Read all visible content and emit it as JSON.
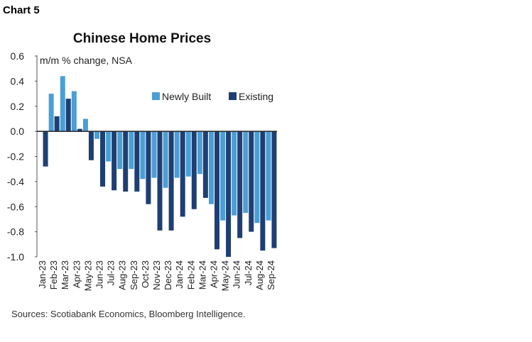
{
  "label": "Chart 5",
  "source": "Sources: Scotiabank Economics, Bloomberg Intelligence.",
  "chart_data": {
    "type": "bar",
    "title": "Chinese Home Prices",
    "ylabel": "m/m % change, NSA",
    "xlabel": "",
    "ylim": [
      -1.0,
      0.6
    ],
    "yticks": [
      "0.6",
      "0.4",
      "0.2",
      "0.0",
      "-0.2",
      "-0.4",
      "-0.6",
      "-0.8",
      "-1.0"
    ],
    "legend_position": "top-right",
    "grid": false,
    "categories": [
      "Jan-23",
      "Feb-23",
      "Mar-23",
      "Apr-23",
      "May-23",
      "Jun-23",
      "Jul-23",
      "Aug-23",
      "Sep-23",
      "Oct-23",
      "Nov-23",
      "Dec-23",
      "Jan-24",
      "Feb-24",
      "Mar-24",
      "Apr-24",
      "May-24",
      "Jun-24",
      "Jul-24",
      "Aug-24",
      "Sep-24"
    ],
    "series": [
      {
        "name": "Newly Built",
        "color": "#4a9fd6",
        "values": [
          0.0,
          0.3,
          0.44,
          0.32,
          0.1,
          -0.06,
          -0.24,
          -0.3,
          -0.3,
          -0.38,
          -0.37,
          -0.45,
          -0.37,
          -0.36,
          -0.34,
          -0.58,
          -0.71,
          -0.67,
          -0.65,
          -0.73,
          -0.71
        ]
      },
      {
        "name": "Existing",
        "color": "#1e3f73",
        "values": [
          -0.28,
          0.12,
          0.26,
          0.02,
          -0.23,
          -0.44,
          -0.47,
          -0.48,
          -0.48,
          -0.58,
          -0.79,
          -0.79,
          -0.68,
          -0.62,
          -0.53,
          -0.94,
          -1.0,
          -0.85,
          -0.8,
          -0.95,
          -0.93
        ]
      }
    ]
  }
}
